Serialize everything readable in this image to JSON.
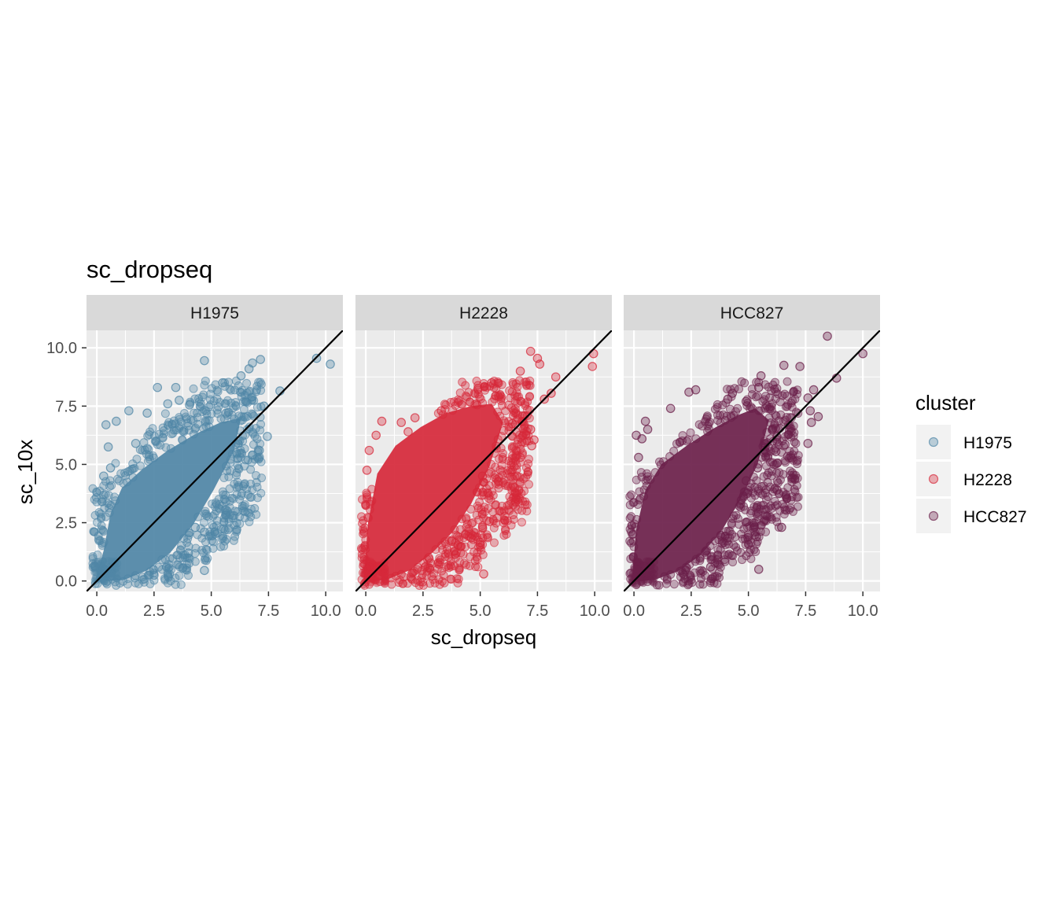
{
  "chart_data": {
    "type": "scatter",
    "title": "sc_dropseq",
    "xlabel": "sc_dropseq",
    "ylabel": "sc_10x",
    "xlim": [
      -0.45,
      10.75
    ],
    "ylim": [
      -0.45,
      10.75
    ],
    "x_ticks": [
      0,
      2.5,
      5,
      7.5,
      10
    ],
    "x_tick_labels": [
      "0.0",
      "2.5",
      "5.0",
      "7.5",
      "10.0"
    ],
    "y_ticks": [
      0,
      2.5,
      5,
      7.5,
      10
    ],
    "y_tick_labels": [
      "0.0",
      "2.5",
      "5.0",
      "7.5",
      "10.0"
    ],
    "grid": true,
    "reference_line": {
      "slope": 1,
      "intercept": 0,
      "color": "#000000"
    },
    "legend": {
      "title": "cluster",
      "position": "right"
    },
    "panels": [
      {
        "name": "H1975",
        "color": "#4F86A6",
        "points": [
          [
            9.6,
            9.55
          ],
          [
            10.2,
            9.3
          ],
          [
            8.0,
            8.15
          ],
          [
            7.15,
            9.5
          ],
          [
            6.8,
            9.35
          ],
          [
            6.65,
            9.1
          ],
          [
            5.65,
            7.2
          ],
          [
            4.7,
            9.45
          ],
          [
            3.45,
            8.3
          ],
          [
            2.65,
            8.3
          ],
          [
            2.2,
            7.2
          ],
          [
            1.4,
            7.3
          ],
          [
            0.4,
            6.7
          ],
          [
            0.85,
            6.85
          ],
          [
            0.5,
            5.75
          ],
          [
            0.3,
            4.5
          ],
          [
            0.6,
            4.85
          ],
          [
            1.7,
            5.9
          ],
          [
            3.1,
            7.6
          ],
          [
            3.6,
            7.75
          ],
          [
            4.05,
            7.55
          ],
          [
            5.5,
            8.5
          ],
          [
            6.3,
            8.8
          ],
          [
            6.1,
            5.5
          ],
          [
            7.3,
            7.5
          ],
          [
            7.45,
            6.2
          ],
          [
            6.8,
            5.4
          ],
          [
            7.1,
            5.6
          ],
          [
            5.65,
            3.05
          ],
          [
            4.7,
            2.1
          ],
          [
            4.3,
            2.3
          ],
          [
            4.7,
            0.45
          ],
          [
            3.75,
            0.55
          ],
          [
            4.0,
            1.2
          ],
          [
            2.5,
            0.25
          ]
        ],
        "core_cloud": [
          [
            -0.1,
            -0.05
          ],
          [
            0.3,
            1.3
          ],
          [
            0.6,
            2.9
          ],
          [
            1.1,
            4.0
          ],
          [
            2.0,
            4.8
          ],
          [
            3.1,
            5.6
          ],
          [
            4.3,
            6.3
          ],
          [
            5.4,
            6.8
          ],
          [
            6.3,
            7.0
          ],
          [
            6.0,
            5.6
          ],
          [
            5.1,
            3.9
          ],
          [
            4.2,
            2.4
          ],
          [
            3.2,
            1.2
          ],
          [
            2.2,
            0.45
          ],
          [
            1.2,
            0.05
          ]
        ]
      },
      {
        "name": "H2228",
        "color": "#D62839",
        "points": [
          [
            7.2,
            9.85
          ],
          [
            7.5,
            9.55
          ],
          [
            7.6,
            9.3
          ],
          [
            9.95,
            9.75
          ],
          [
            8.3,
            8.75
          ],
          [
            6.75,
            9.0
          ],
          [
            9.9,
            9.2
          ],
          [
            8.1,
            8.05
          ],
          [
            7.8,
            7.8
          ],
          [
            5.5,
            8.5
          ],
          [
            4.9,
            8.25
          ],
          [
            3.3,
            7.3
          ],
          [
            2.15,
            7.0
          ],
          [
            1.85,
            6.4
          ],
          [
            1.55,
            6.8
          ],
          [
            0.7,
            6.85
          ],
          [
            0.45,
            6.25
          ],
          [
            0.15,
            5.6
          ],
          [
            0.05,
            4.75
          ],
          [
            6.4,
            6.75
          ],
          [
            7.2,
            6.5
          ],
          [
            7.35,
            6.05
          ],
          [
            7.25,
            5.8
          ],
          [
            6.75,
            5.3
          ],
          [
            6.6,
            4.5
          ],
          [
            6.5,
            4.0
          ],
          [
            5.1,
            4.5
          ],
          [
            4.6,
            1.85
          ],
          [
            5.0,
            1.55
          ],
          [
            5.4,
            2.55
          ],
          [
            5.1,
            2.3
          ],
          [
            5.0,
            1.65
          ],
          [
            5.15,
            0.3
          ],
          [
            3.75,
            1.7
          ],
          [
            2.75,
            1.0
          ]
        ],
        "core_cloud": [
          [
            -0.1,
            -0.05
          ],
          [
            0.1,
            2.5
          ],
          [
            0.5,
            4.6
          ],
          [
            1.3,
            5.8
          ],
          [
            2.4,
            6.6
          ],
          [
            3.5,
            7.2
          ],
          [
            4.6,
            7.5
          ],
          [
            5.5,
            7.6
          ],
          [
            6.0,
            6.8
          ],
          [
            5.4,
            4.9
          ],
          [
            4.6,
            3.3
          ],
          [
            3.8,
            2.1
          ],
          [
            2.9,
            1.2
          ],
          [
            1.9,
            0.45
          ],
          [
            0.9,
            0.05
          ]
        ]
      },
      {
        "name": "HCC827",
        "color": "#6B1F4A",
        "points": [
          [
            8.45,
            10.5
          ],
          [
            10.0,
            9.75
          ],
          [
            8.85,
            8.7
          ],
          [
            7.25,
            9.2
          ],
          [
            6.55,
            9.25
          ],
          [
            7.85,
            8.2
          ],
          [
            5.55,
            8.8
          ],
          [
            5.45,
            8.3
          ],
          [
            4.9,
            7.7
          ],
          [
            4.3,
            8.05
          ],
          [
            4.1,
            7.8
          ],
          [
            2.7,
            8.2
          ],
          [
            2.4,
            8.1
          ],
          [
            1.6,
            7.4
          ],
          [
            0.6,
            6.5
          ],
          [
            0.5,
            6.85
          ],
          [
            0.35,
            6.1
          ],
          [
            0.1,
            6.25
          ],
          [
            0.2,
            5.3
          ],
          [
            7.6,
            7.85
          ],
          [
            7.7,
            7.3
          ],
          [
            8.05,
            7.05
          ],
          [
            7.75,
            6.8
          ],
          [
            7.6,
            5.9
          ],
          [
            6.6,
            5.85
          ],
          [
            6.2,
            5.55
          ],
          [
            6.25,
            5.05
          ],
          [
            5.4,
            4.85
          ],
          [
            4.9,
            4.3
          ],
          [
            4.95,
            3.75
          ],
          [
            6.25,
            3.9
          ],
          [
            6.45,
            2.3
          ],
          [
            5.35,
            1.9
          ],
          [
            5.45,
            0.5
          ],
          [
            3.35,
            0.6
          ]
        ],
        "core_cloud": [
          [
            -0.1,
            -0.05
          ],
          [
            0.1,
            2.2
          ],
          [
            0.5,
            3.9
          ],
          [
            1.2,
            5.0
          ],
          [
            2.3,
            5.8
          ],
          [
            3.4,
            6.5
          ],
          [
            4.5,
            7.1
          ],
          [
            5.3,
            7.4
          ],
          [
            5.9,
            6.9
          ],
          [
            5.4,
            5.0
          ],
          [
            4.6,
            3.4
          ],
          [
            3.8,
            2.1
          ],
          [
            2.9,
            1.1
          ],
          [
            1.9,
            0.4
          ],
          [
            0.9,
            0.05
          ]
        ]
      }
    ]
  }
}
